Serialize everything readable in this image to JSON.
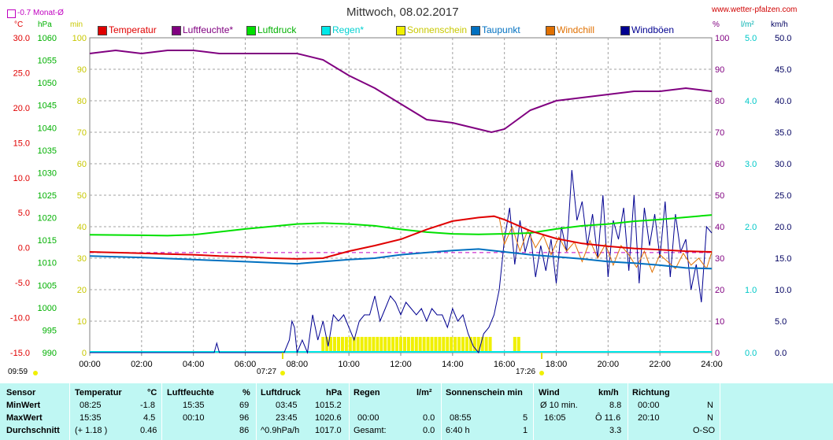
{
  "title": "Mittwoch, 08.02.2017",
  "site": "www.wetter-pfalzen.com",
  "month_avg_label": "-0.7 Monat-Ø",
  "unit_labels": {
    "celsius": "°C",
    "hpa": "hPa",
    "min": "min",
    "percent": "%",
    "lm2": "l/m²",
    "kmh": "km/h"
  },
  "legend": [
    {
      "label": "Temperatur",
      "color": "#e00000"
    },
    {
      "label": "Luftfeuchte*",
      "color": "#800080"
    },
    {
      "label": "Luftdruck",
      "color": "#00e000"
    },
    {
      "label": "Regen*",
      "color": "#00e8e8"
    },
    {
      "label": "Sonnenschein",
      "color": "#f0f000"
    },
    {
      "label": "Taupunkt",
      "color": "#0070c0"
    },
    {
      "label": "Windchill",
      "color": "#e07000"
    },
    {
      "label": "Windböen",
      "color": "#000090"
    }
  ],
  "sun_labels": {
    "left": "09:59",
    "sunrise": "07:27",
    "sunset": "17:26"
  },
  "chart_data": {
    "type": "line",
    "x_ticks": [
      "00:00",
      "02:00",
      "04:00",
      "06:00",
      "08:00",
      "10:00",
      "12:00",
      "14:00",
      "16:00",
      "18:00",
      "20:00",
      "22:00",
      "24:00"
    ],
    "axes": {
      "temperature_c": {
        "range": [
          -15,
          30
        ],
        "ticks": [
          "30.0",
          "25.0",
          "20.0",
          "15.0",
          "10.0",
          "5.0",
          "0.0",
          "-5.0",
          "-10.0",
          "-15.0"
        ]
      },
      "pressure_hpa": {
        "range": [
          990,
          1060
        ],
        "ticks": [
          "1060",
          "1055",
          "1050",
          "1045",
          "1040",
          "1035",
          "1030",
          "1025",
          "1020",
          "1015",
          "1010",
          "1005",
          "1000",
          "995",
          "990"
        ]
      },
      "sunshine_min": {
        "range": [
          0,
          100
        ],
        "ticks": [
          "100",
          "90",
          "80",
          "70",
          "60",
          "50",
          "40",
          "30",
          "20",
          "10",
          "0"
        ]
      },
      "humidity_pct": {
        "range": [
          0,
          100
        ],
        "ticks": [
          "100",
          "90",
          "80",
          "70",
          "60",
          "50",
          "40",
          "30",
          "20",
          "10",
          "0"
        ]
      },
      "rain_lm2": {
        "range": [
          0,
          5
        ],
        "ticks": [
          "5.0",
          "4.0",
          "3.0",
          "2.0",
          "1.0",
          "0.0"
        ]
      },
      "wind_kmh": {
        "range": [
          0,
          50
        ],
        "ticks": [
          "50.0",
          "45.0",
          "40.0",
          "35.0",
          "30.0",
          "25.0",
          "20.0",
          "15.0",
          "10.0",
          "5.0",
          "0.0"
        ]
      }
    },
    "series": [
      {
        "name": "Temperatur",
        "x": [
          0,
          1,
          2,
          3,
          4,
          5,
          6,
          7,
          8,
          9,
          10,
          11,
          12,
          13,
          14,
          15,
          15.6,
          16,
          17,
          18,
          19,
          20,
          21,
          22,
          23,
          24
        ],
        "y": [
          -0.6,
          -0.7,
          -0.8,
          -0.9,
          -1.0,
          -1.2,
          -1.3,
          -1.5,
          -1.6,
          -1.5,
          -0.5,
          0.3,
          1.2,
          2.6,
          3.8,
          4.3,
          4.5,
          4.0,
          2.4,
          1.3,
          0.6,
          0.2,
          -0.1,
          -0.3,
          -0.5,
          -0.6
        ]
      },
      {
        "name": "Luftfeuchte*",
        "x": [
          0,
          1,
          2,
          3,
          4,
          5,
          6,
          7,
          8,
          9,
          10,
          11,
          12,
          13,
          14,
          15,
          15.5,
          16,
          17,
          18,
          19,
          20,
          21,
          22,
          23,
          24
        ],
        "y": [
          95,
          96,
          95,
          96,
          96,
          95,
          95,
          95,
          95,
          93,
          88,
          84,
          79,
          74,
          73,
          71,
          70,
          71,
          77,
          80,
          81,
          82,
          83,
          83,
          84,
          83
        ]
      },
      {
        "name": "Luftdruck",
        "x": [
          0,
          2,
          3,
          4,
          6,
          8,
          9,
          10,
          11,
          12,
          13,
          14,
          15,
          16,
          17,
          18,
          19,
          20,
          21,
          22,
          23,
          24
        ],
        "y": [
          1016.2,
          1016.1,
          1016.0,
          1016.2,
          1017.5,
          1018.6,
          1018.8,
          1018.6,
          1018.2,
          1017.4,
          1016.8,
          1016.4,
          1016.3,
          1016.4,
          1016.6,
          1017.5,
          1018.2,
          1018.6,
          1019.2,
          1019.6,
          1020.1,
          1020.6
        ]
      },
      {
        "name": "Taupunkt",
        "x": [
          0,
          2,
          4,
          6,
          8,
          9,
          10,
          11,
          12,
          13,
          14,
          15,
          16,
          17,
          18,
          19,
          20,
          21,
          22,
          23,
          24
        ],
        "y": [
          -1.2,
          -1.4,
          -1.7,
          -2.0,
          -2.3,
          -2.0,
          -1.7,
          -1.5,
          -1.0,
          -0.7,
          -0.4,
          -0.2,
          -0.6,
          -1.0,
          -1.3,
          -1.6,
          -2.0,
          -2.2,
          -2.5,
          -2.9,
          -3.0
        ]
      },
      {
        "name": "Windchill",
        "x": [
          15.8,
          16,
          16.3,
          16.6,
          16.9,
          17.2,
          17.5,
          17.8,
          18.1,
          18.4,
          18.7,
          19,
          19.3,
          19.6,
          19.9,
          20.2,
          20.5,
          20.8,
          21.1,
          21.4,
          21.7,
          22,
          22.3,
          22.6,
          22.9,
          23.2,
          23.5,
          23.8,
          24
        ],
        "y": [
          4.3,
          0.5,
          3.0,
          -0.5,
          2.5,
          0.0,
          1.8,
          -1.0,
          1.5,
          -0.5,
          0.8,
          -2.0,
          1.0,
          -1.5,
          0.5,
          -2.5,
          0.3,
          -1.0,
          -2.8,
          -0.5,
          -3.5,
          -1.0,
          -2.0,
          -3.0,
          -0.8,
          -2.5,
          -1.5,
          -3.0,
          -0.6
        ]
      },
      {
        "name": "Windböen",
        "x": [
          0,
          4.8,
          4.9,
          5.0,
          7.5,
          7.7,
          7.8,
          7.9,
          8.0,
          8.2,
          8.4,
          8.6,
          8.8,
          9.0,
          9.2,
          9.4,
          9.6,
          9.8,
          10.0,
          10.2,
          10.4,
          10.6,
          10.8,
          11.0,
          11.2,
          11.4,
          11.6,
          11.8,
          12.0,
          12.2,
          12.4,
          12.6,
          12.8,
          13.0,
          13.2,
          13.4,
          13.6,
          13.8,
          14.0,
          14.2,
          14.4,
          14.6,
          14.8,
          15.0,
          15.2,
          15.4,
          15.6,
          15.8,
          16.0,
          16.2,
          16.4,
          16.6,
          16.8,
          17.0,
          17.2,
          17.4,
          17.6,
          17.8,
          18.0,
          18.2,
          18.4,
          18.6,
          18.8,
          19.0,
          19.2,
          19.4,
          19.6,
          19.8,
          20.0,
          20.2,
          20.4,
          20.6,
          20.8,
          21.0,
          21.2,
          21.4,
          21.6,
          21.8,
          22.0,
          22.2,
          22.4,
          22.6,
          22.8,
          23.0,
          23.2,
          23.4,
          23.6,
          23.8,
          24.0
        ],
        "y": [
          0,
          0,
          1.5,
          0,
          0,
          2,
          5,
          4,
          0,
          2,
          0,
          6,
          2,
          5,
          1,
          6,
          5,
          6,
          4,
          2,
          5,
          6,
          6,
          9,
          5,
          7,
          9,
          8,
          6,
          8,
          7,
          6,
          7,
          5,
          7,
          6,
          6,
          4,
          7,
          5,
          6,
          3,
          1,
          0,
          3,
          4,
          6,
          10,
          18,
          23,
          14,
          21,
          16,
          19,
          12,
          17,
          13,
          18,
          11,
          20,
          16,
          29,
          21,
          24,
          17,
          22,
          15,
          25,
          12,
          21,
          18,
          23,
          13,
          25,
          11,
          23,
          17,
          22,
          15,
          24,
          12,
          22,
          16,
          18,
          10,
          14,
          8,
          20,
          19
        ]
      }
    ],
    "sunshine_bars": {
      "x": [
        9.0,
        9.15,
        9.3,
        9.45,
        9.6,
        9.75,
        9.9,
        10.05,
        10.2,
        10.35,
        10.5,
        10.65,
        10.8,
        10.95,
        11.1,
        11.25,
        11.4,
        11.55,
        11.7,
        11.85,
        12.0,
        12.15,
        12.3,
        12.45,
        12.6,
        12.75,
        12.9,
        13.05,
        13.2,
        13.35,
        13.5,
        13.65,
        13.8,
        13.95,
        14.1,
        14.25,
        14.4,
        14.55,
        14.7,
        14.85,
        15.0,
        15.15,
        15.3,
        15.45,
        16.4,
        16.55
      ],
      "y": [
        5,
        5,
        5,
        5,
        5,
        5,
        5,
        5,
        5,
        5,
        5,
        5,
        5,
        5,
        5,
        5,
        5,
        5,
        5,
        5,
        5,
        5,
        5,
        5,
        5,
        5,
        5,
        5,
        5,
        5,
        5,
        5,
        5,
        5,
        5,
        5,
        5,
        5,
        5,
        5,
        5,
        5,
        5,
        5,
        5,
        5
      ]
    },
    "month_avg_temp": -0.7
  },
  "table": {
    "headers": [
      "Sensor",
      "Temperatur",
      "°C",
      "Luftfeuchte",
      "%",
      "Luftdruck",
      "hPa",
      "Regen",
      "l/m²",
      "Sonnenschein min",
      "Wind",
      "km/h",
      "Richtung"
    ],
    "rows": [
      {
        "label": "MinWert",
        "t_time": "08:25",
        "t_val": "-1.8",
        "h_time": "15:35",
        "h_val": "69",
        "p_time": "03:45",
        "p_val": "1015.2",
        "r_time": "",
        "r_val": "",
        "s_time": "",
        "s_val": "",
        "w_time": "Ø 10 min.",
        "w_val": "8.8",
        "d_time": "00:00",
        "d_val": "N"
      },
      {
        "label": "MaxWert",
        "t_time": "15:35",
        "t_val": "4.5",
        "h_time": "00:10",
        "h_val": "96",
        "p_time": "23:45",
        "p_val": "1020.6",
        "r_time": "00:00",
        "r_val": "0.0",
        "s_time": "08:55",
        "s_val": "5",
        "w_time": "16:05",
        "w_val": "Ô 11.6",
        "d_time": "20:10",
        "d_val": "N"
      },
      {
        "label": "Durchschnitt",
        "t_time": "(+ 1.18 )",
        "t_val": "0.46",
        "h_time": "",
        "h_val": "86",
        "p_time": "^0.9hPa/h",
        "p_val": "1017.0",
        "r_time": "Gesamt:",
        "r_val": "0.0",
        "s_time": "6:40 h",
        "s_val": "1",
        "w_time": "",
        "w_val": "3.3",
        "d_time": "",
        "d_val": "O-SO"
      }
    ]
  }
}
